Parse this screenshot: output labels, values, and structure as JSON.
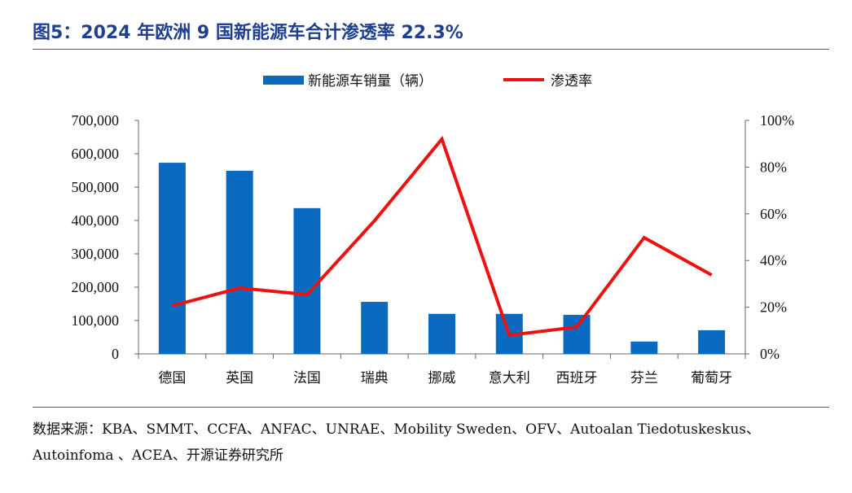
{
  "title": "图5：2024 年欧洲 9 国新能源车合计渗透率 22.3%",
  "source": "数据来源：KBA、SMMT、CCFA、ANFAC、UNRAE、Mobility Sweden、OFV、Autoalan Tiedotuskeskus、Autoinfoma 、ACEA、开源证券研究所",
  "colors": {
    "bar": "#0a6ac0",
    "line": "#ee1111"
  },
  "chart_data": {
    "type": "bar+line",
    "title": "",
    "categories": [
      "德国",
      "英国",
      "法国",
      "瑞典",
      "挪威",
      "意大利",
      "西班牙",
      "芬兰",
      "葡萄牙"
    ],
    "series": [
      {
        "name": "新能源车销量（辆）",
        "type": "bar",
        "axis": "left",
        "values": [
          573000,
          549000,
          437000,
          156000,
          120000,
          120000,
          117000,
          37000,
          71000
        ]
      },
      {
        "name": "渗透率",
        "type": "line",
        "axis": "right",
        "values": [
          20.6,
          28.2,
          25.4,
          57,
          92,
          8,
          11.5,
          49.8,
          33.8
        ]
      }
    ],
    "yleft": {
      "lim": [
        0,
        700000
      ],
      "ticks": [
        "0",
        "100,000",
        "200,000",
        "300,000",
        "400,000",
        "500,000",
        "600,000",
        "700,000"
      ]
    },
    "yright": {
      "lim": [
        0,
        100
      ],
      "ticks": [
        "0%",
        "20%",
        "40%",
        "60%",
        "80%",
        "100%"
      ]
    },
    "legend": "top-center",
    "grid": false
  }
}
